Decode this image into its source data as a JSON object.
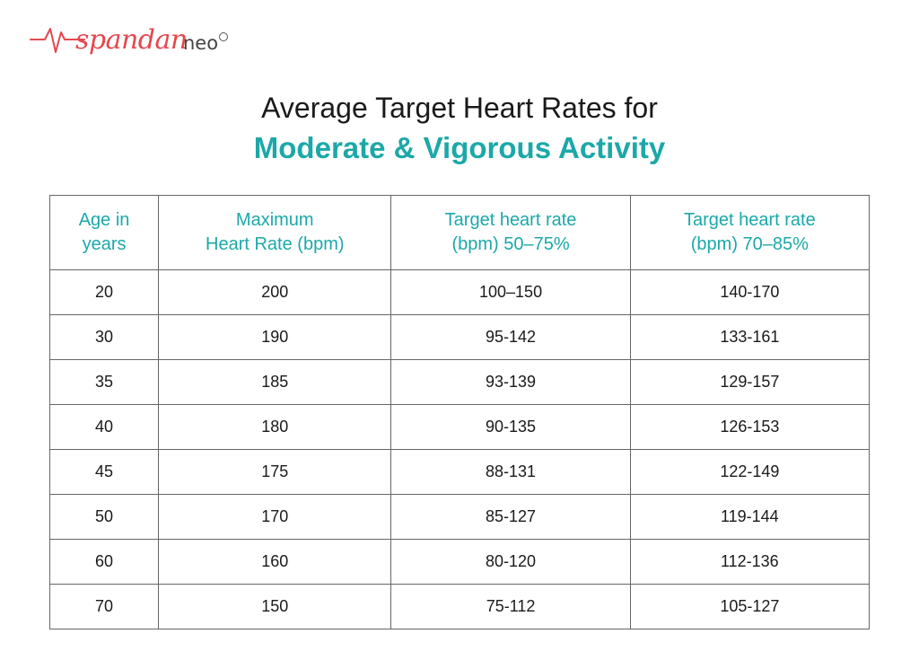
{
  "logo": {
    "script_text": "spandan",
    "suffix_text": "neo",
    "accent_color": "#e4484f",
    "icon": "heartbeat-line-icon"
  },
  "title": {
    "line1": "Average Target Heart Rates for",
    "line2": "Moderate & Vigorous Activity",
    "accent_color": "#1ca8a8"
  },
  "table": {
    "headers": [
      [
        "Age in",
        "years"
      ],
      [
        "Maximum",
        "Heart Rate (bpm)"
      ],
      [
        "Target heart rate",
        "(bpm) 50–75%"
      ],
      [
        "Target heart rate",
        "(bpm) 70–85%"
      ]
    ],
    "rows": [
      [
        "20",
        "200",
        "100–150",
        "140-170"
      ],
      [
        "30",
        "190",
        "95-142",
        "133-161"
      ],
      [
        "35",
        "185",
        "93-139",
        "129-157"
      ],
      [
        "40",
        "180",
        "90-135",
        "126-153"
      ],
      [
        "45",
        "175",
        "88-131",
        "122-149"
      ],
      [
        "50",
        "170",
        "85-127",
        "119-144"
      ],
      [
        "60",
        "160",
        "80-120",
        "112-136"
      ],
      [
        "70",
        "150",
        "75-112",
        "105-127"
      ]
    ]
  }
}
